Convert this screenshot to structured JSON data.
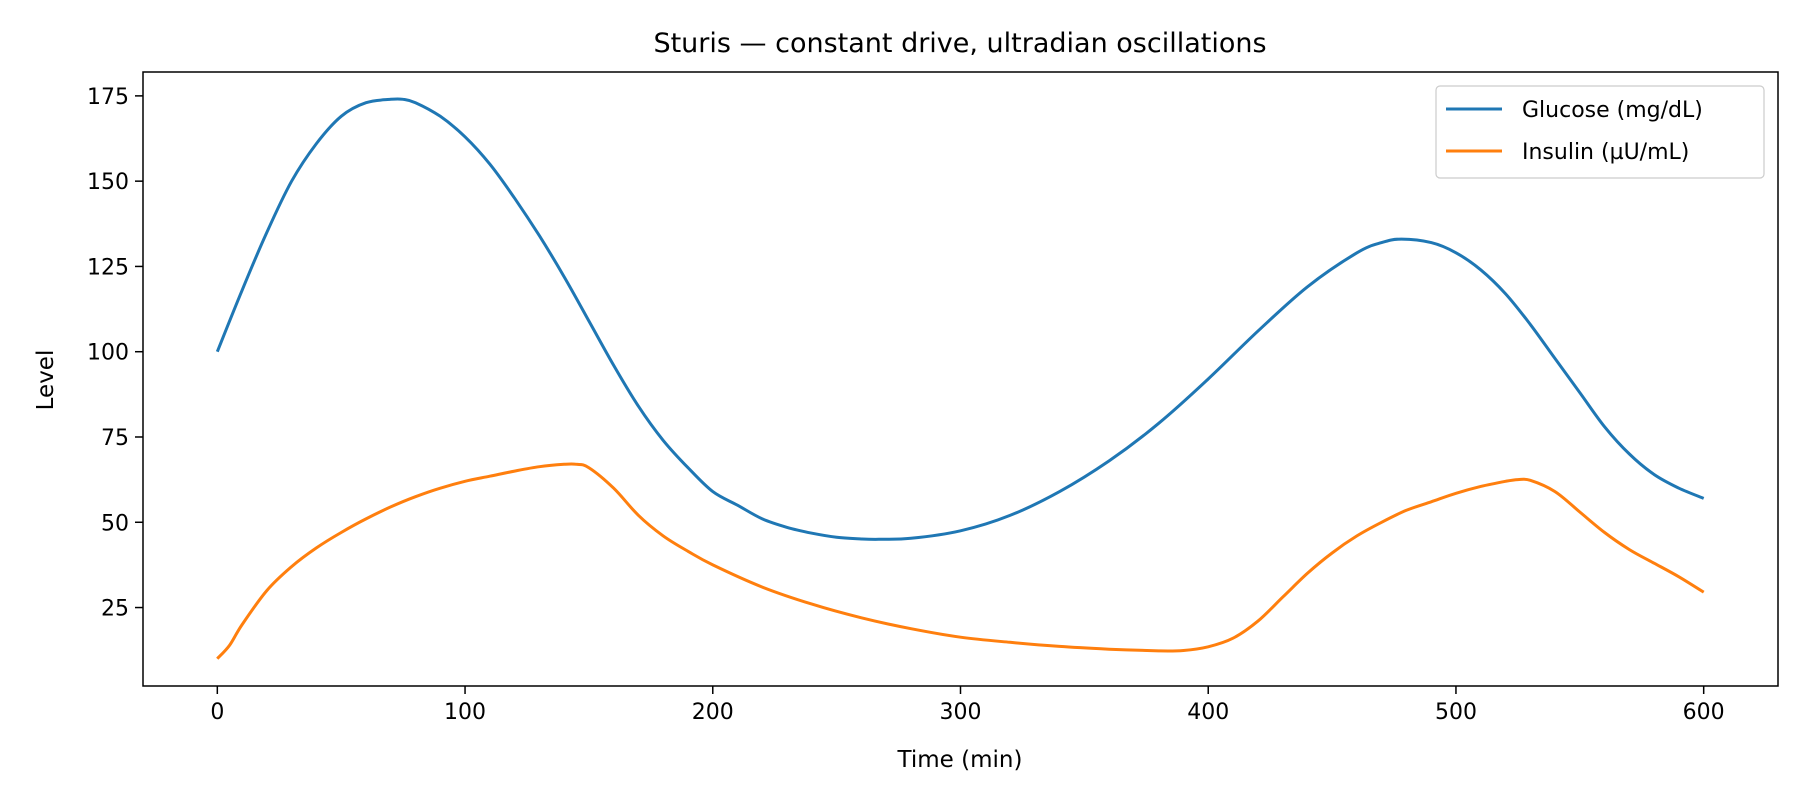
{
  "chart_data": {
    "type": "line",
    "title": "Sturis — constant drive, ultradian oscillations",
    "xlabel": "Time (min)",
    "ylabel": "Level",
    "xlim": [
      -30,
      630
    ],
    "ylim": [
      2,
      182
    ],
    "xticks": [
      0,
      100,
      200,
      300,
      400,
      500,
      600
    ],
    "yticks": [
      25,
      50,
      75,
      100,
      125,
      150,
      175
    ],
    "grid": false,
    "legend": "top-right",
    "series": [
      {
        "name": "Glucose (mg/dL)",
        "color": "#1f77b4",
        "x": [
          0,
          10,
          20,
          30,
          40,
          50,
          60,
          70,
          75,
          80,
          90,
          100,
          110,
          120,
          130,
          140,
          150,
          160,
          170,
          180,
          190,
          200,
          210,
          220,
          230,
          240,
          250,
          260,
          267,
          280,
          300,
          320,
          340,
          360,
          380,
          400,
          420,
          440,
          460,
          470,
          478,
          490,
          500,
          510,
          520,
          530,
          540,
          550,
          560,
          570,
          580,
          590,
          600
        ],
        "y": [
          100,
          118,
          135,
          150,
          161,
          169,
          173,
          174,
          174,
          173,
          169,
          163,
          155,
          145,
          134,
          122,
          109,
          96,
          84,
          74,
          66,
          59,
          55,
          51,
          48.5,
          46.8,
          45.6,
          45.1,
          45,
          45.3,
          47.5,
          52,
          59,
          68,
          79,
          92,
          106,
          119,
          129,
          132,
          133,
          132,
          129,
          124,
          117,
          108,
          98,
          88,
          78,
          70,
          64,
          60,
          57
        ]
      },
      {
        "name": "Insulin (µU/mL)",
        "color": "#ff7f0e",
        "x": [
          0,
          5,
          10,
          20,
          30,
          40,
          50,
          60,
          70,
          80,
          90,
          100,
          110,
          120,
          130,
          140,
          145,
          150,
          160,
          170,
          180,
          190,
          200,
          220,
          240,
          260,
          280,
          300,
          320,
          340,
          360,
          380,
          390,
          400,
          410,
          420,
          430,
          440,
          450,
          460,
          470,
          480,
          490,
          500,
          510,
          520,
          525,
          530,
          540,
          550,
          560,
          570,
          580,
          590,
          600
        ],
        "y": [
          10,
          14,
          20,
          30,
          37,
          42.5,
          47,
          51,
          54.5,
          57.5,
          60,
          62,
          63.5,
          65,
          66.3,
          67,
          67,
          66,
          60,
          52,
          46,
          41.5,
          37.5,
          31,
          26,
          22,
          18.8,
          16.3,
          14.8,
          13.6,
          12.8,
          12.3,
          12.4,
          13.5,
          16,
          21,
          28,
          35,
          41,
          46,
          50,
          53.5,
          56,
          58.5,
          60.5,
          62,
          62.5,
          62.3,
          59,
          53,
          47,
          42,
          38,
          34,
          29.5
        ]
      }
    ]
  }
}
